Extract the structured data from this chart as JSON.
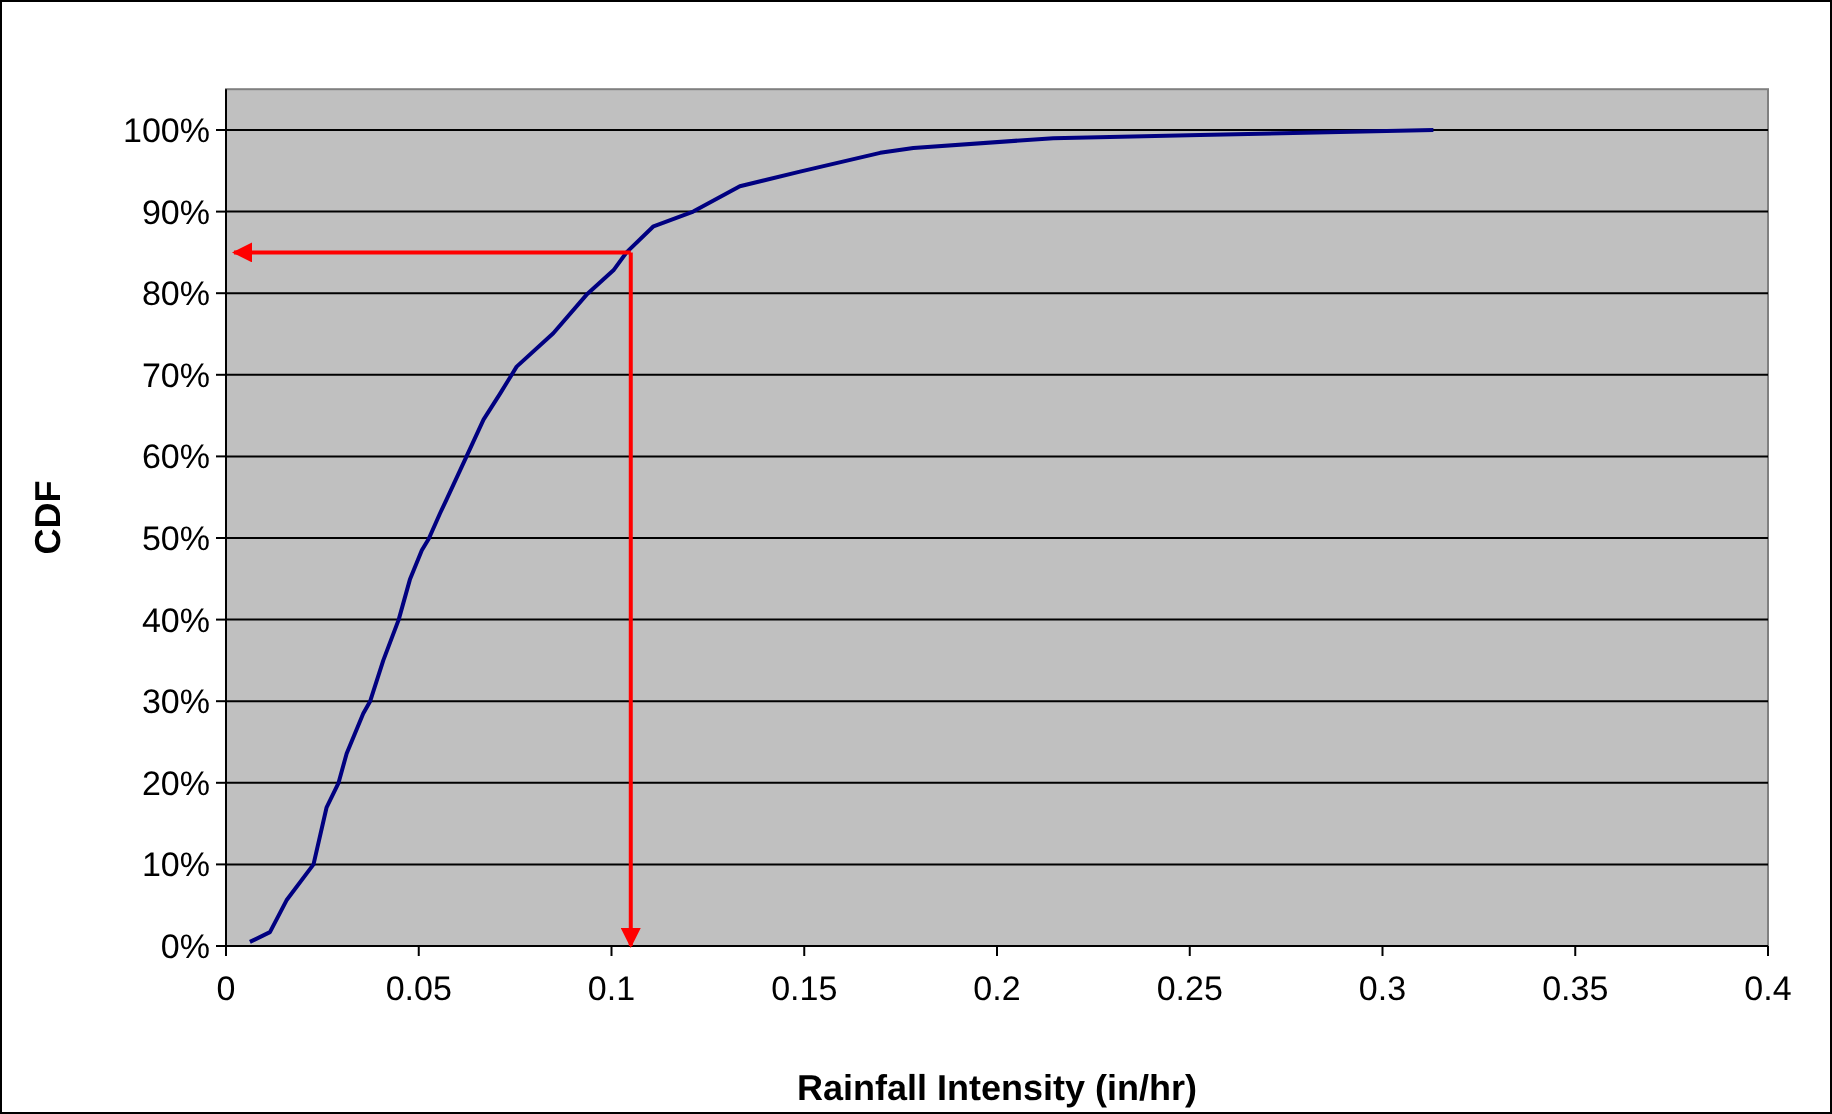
{
  "chart_data": {
    "type": "line",
    "xlabel": "Rainfall Intensity (in/hr)",
    "ylabel": "CDF",
    "x": [
      0.0062,
      0.0114,
      0.0157,
      0.0227,
      0.0261,
      0.0292,
      0.0313,
      0.0356,
      0.0374,
      0.0408,
      0.0448,
      0.0477,
      0.0508,
      0.0526,
      0.0555,
      0.0572,
      0.0624,
      0.0668,
      0.0711,
      0.0754,
      0.0849,
      0.0935,
      0.1005,
      0.1039,
      0.1109,
      0.1212,
      0.1333,
      0.1489,
      0.1697,
      0.1783,
      0.2146,
      0.2527,
      0.3132
    ],
    "series": [
      {
        "color": "#000080",
        "values": [
          0.5,
          1.7,
          5.6,
          10,
          17,
          20,
          23.6,
          28.5,
          30,
          35,
          40,
          44.9,
          48.5,
          49.9,
          53,
          54.7,
          60,
          64.5,
          67.7,
          71,
          75.1,
          79.8,
          82.8,
          85,
          88.2,
          90,
          93.1,
          94.9,
          97.2,
          97.8,
          99,
          99.4,
          100
        ]
      }
    ],
    "xlim": [
      0,
      0.4
    ],
    "xticks": [
      0,
      0.05,
      0.1,
      0.15,
      0.2,
      0.25,
      0.3,
      0.35,
      0.4
    ],
    "ylim": [
      0,
      105
    ],
    "yticks": [
      {
        "value": 0,
        "label": "0%"
      },
      {
        "value": 10,
        "label": "10%"
      },
      {
        "value": 20,
        "label": "20%"
      },
      {
        "value": 30,
        "label": "30%"
      },
      {
        "value": 40,
        "label": "40%"
      },
      {
        "value": 50,
        "label": "50%"
      },
      {
        "value": 60,
        "label": "60%"
      },
      {
        "value": 70,
        "label": "70%"
      },
      {
        "value": 80,
        "label": "80%"
      },
      {
        "value": 90,
        "label": "90%"
      },
      {
        "value": 100,
        "label": "100%"
      }
    ],
    "grid": "y",
    "marker": "none",
    "line_style": "solid",
    "ref_lines": [
      {
        "axis": "x",
        "value": 0.105,
        "color": "#ff0000"
      },
      {
        "axis": "y",
        "value": 85,
        "color": "#ff0000"
      }
    ]
  }
}
